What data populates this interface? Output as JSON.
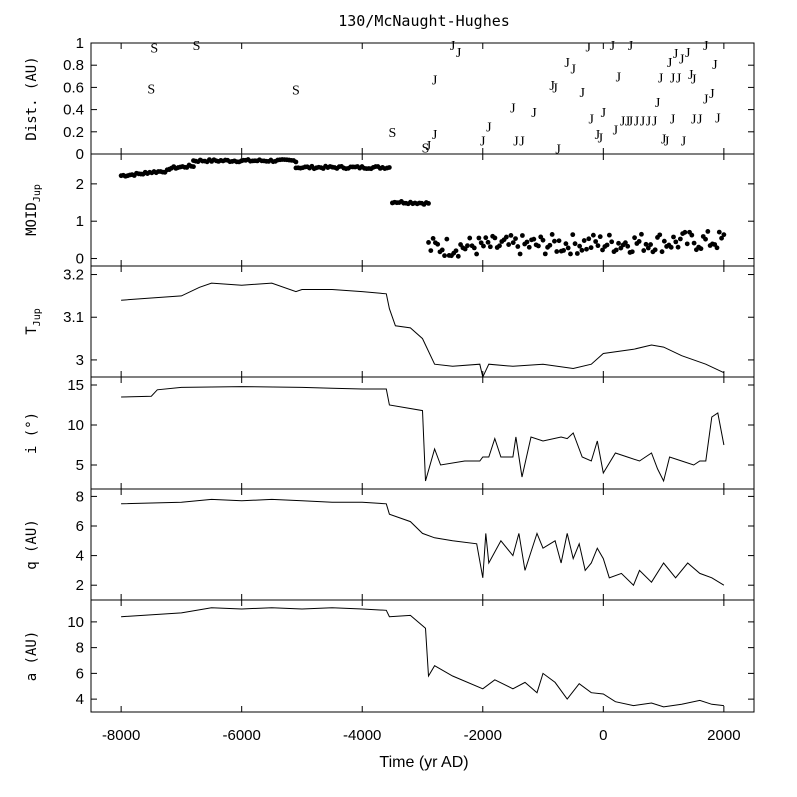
{
  "chart_data": {
    "type": "line",
    "title": "130/McNaught-Hughes",
    "xlabel": "Time (yr AD)",
    "xlim": [
      -8500,
      2500
    ],
    "x_ticks": [
      "-8000",
      "-6000",
      "-4000",
      "-2000",
      "0",
      "2000"
    ],
    "x_tick_values": [
      -8000,
      -6000,
      -4000,
      -2000,
      0,
      2000
    ],
    "panels": [
      {
        "key": "dist",
        "ylabel": "Dist. (AU)",
        "type": "scatter-markers",
        "ylim": [
          0,
          1
        ],
        "yticks": [
          "0",
          "0.2",
          "0.4",
          "0.6",
          "0.8",
          "1"
        ],
        "ytick_values": [
          0,
          0.2,
          0.4,
          0.6,
          0.8,
          1
        ],
        "marker_legend": {
          "S": "S",
          "J": "J"
        },
        "markers": [
          {
            "t": -7450,
            "d": 0.96,
            "m": "S"
          },
          {
            "t": -6750,
            "d": 0.98,
            "m": "S"
          },
          {
            "t": -7500,
            "d": 0.59,
            "m": "S"
          },
          {
            "t": -5100,
            "d": 0.58,
            "m": "S"
          },
          {
            "t": -3500,
            "d": 0.2,
            "m": "S"
          },
          {
            "t": -2950,
            "d": 0.06,
            "m": "S"
          },
          {
            "t": -2500,
            "d": 0.98,
            "m": "J"
          },
          {
            "t": -2400,
            "d": 0.92,
            "m": "J"
          },
          {
            "t": -2800,
            "d": 0.67,
            "m": "J"
          },
          {
            "t": -2800,
            "d": 0.18,
            "m": "J"
          },
          {
            "t": -2900,
            "d": 0.08,
            "m": "J"
          },
          {
            "t": -1900,
            "d": 0.25,
            "m": "J"
          },
          {
            "t": -2000,
            "d": 0.12,
            "m": "J"
          },
          {
            "t": -1500,
            "d": 0.42,
            "m": "J"
          },
          {
            "t": -1450,
            "d": 0.12,
            "m": "J"
          },
          {
            "t": -1350,
            "d": 0.12,
            "m": "J"
          },
          {
            "t": -1150,
            "d": 0.38,
            "m": "J"
          },
          {
            "t": -850,
            "d": 0.62,
            "m": "J"
          },
          {
            "t": -800,
            "d": 0.6,
            "m": "J"
          },
          {
            "t": -750,
            "d": 0.05,
            "m": "J"
          },
          {
            "t": -600,
            "d": 0.83,
            "m": "J"
          },
          {
            "t": -500,
            "d": 0.77,
            "m": "J"
          },
          {
            "t": -350,
            "d": 0.56,
            "m": "J"
          },
          {
            "t": -250,
            "d": 0.97,
            "m": "J"
          },
          {
            "t": -200,
            "d": 0.32,
            "m": "J"
          },
          {
            "t": -100,
            "d": 0.18,
            "m": "J"
          },
          {
            "t": 0,
            "d": 0.38,
            "m": "J"
          },
          {
            "t": -50,
            "d": 0.15,
            "m": "J"
          },
          {
            "t": 150,
            "d": 0.98,
            "m": "J"
          },
          {
            "t": 200,
            "d": 0.22,
            "m": "J"
          },
          {
            "t": 250,
            "d": 0.7,
            "m": "J"
          },
          {
            "t": 320,
            "d": 0.3,
            "m": "J"
          },
          {
            "t": 400,
            "d": 0.3,
            "m": "J"
          },
          {
            "t": 450,
            "d": 0.3,
            "m": "J"
          },
          {
            "t": 450,
            "d": 0.98,
            "m": "J"
          },
          {
            "t": 550,
            "d": 0.3,
            "m": "J"
          },
          {
            "t": 650,
            "d": 0.3,
            "m": "J"
          },
          {
            "t": 750,
            "d": 0.3,
            "m": "J"
          },
          {
            "t": 850,
            "d": 0.3,
            "m": "J"
          },
          {
            "t": 900,
            "d": 0.47,
            "m": "J"
          },
          {
            "t": 950,
            "d": 0.69,
            "m": "J"
          },
          {
            "t": 1000,
            "d": 0.14,
            "m": "J"
          },
          {
            "t": 1050,
            "d": 0.12,
            "m": "J"
          },
          {
            "t": 1100,
            "d": 0.83,
            "m": "J"
          },
          {
            "t": 1150,
            "d": 0.69,
            "m": "J"
          },
          {
            "t": 1200,
            "d": 0.91,
            "m": "J"
          },
          {
            "t": 1250,
            "d": 0.69,
            "m": "J"
          },
          {
            "t": 1300,
            "d": 0.86,
            "m": "J"
          },
          {
            "t": 1330,
            "d": 0.12,
            "m": "J"
          },
          {
            "t": 1400,
            "d": 0.92,
            "m": "J"
          },
          {
            "t": 1450,
            "d": 0.72,
            "m": "J"
          },
          {
            "t": 1500,
            "d": 0.68,
            "m": "J"
          },
          {
            "t": 1600,
            "d": 0.32,
            "m": "J"
          },
          {
            "t": 1700,
            "d": 0.98,
            "m": "J"
          },
          {
            "t": 1700,
            "d": 0.5,
            "m": "J"
          },
          {
            "t": 1800,
            "d": 0.55,
            "m": "J"
          },
          {
            "t": 1850,
            "d": 0.81,
            "m": "J"
          },
          {
            "t": 1900,
            "d": 0.33,
            "m": "J"
          },
          {
            "t": 1500,
            "d": 0.32,
            "m": "J"
          },
          {
            "t": 1150,
            "d": 0.32,
            "m": "J"
          }
        ]
      },
      {
        "key": "moid",
        "ylabel": "MOID",
        "ylabel_sub": "Jup",
        "type": "scatter",
        "ylim": [
          -0.2,
          2.8
        ],
        "yticks": [
          "0",
          "1",
          "2"
        ],
        "ytick_values": [
          0,
          1,
          2
        ],
        "segments": [
          {
            "t0": -8000,
            "t1": -7600,
            "v0": 2.22,
            "v1": 2.28
          },
          {
            "t0": -7600,
            "t1": -7200,
            "v0": 2.3,
            "v1": 2.35
          },
          {
            "t0": -7200,
            "t1": -6800,
            "v0": 2.42,
            "v1": 2.48
          },
          {
            "t0": -6800,
            "t1": -5100,
            "v0": 2.62,
            "v1": 2.62
          },
          {
            "t0": -5100,
            "t1": -3550,
            "v0": 2.44,
            "v1": 2.44
          },
          {
            "t0": -3500,
            "t1": -2900,
            "v0": 1.52,
            "v1": 1.48
          },
          {
            "t0": -2900,
            "t1": 2000,
            "v0": 0.3,
            "v1": 0.48
          }
        ]
      },
      {
        "key": "tjup",
        "ylabel": "T",
        "ylabel_sub": "Jup",
        "type": "line",
        "ylim": [
          2.96,
          3.22
        ],
        "yticks": [
          "3",
          "3.1",
          "3.2"
        ],
        "ytick_values": [
          3.0,
          3.1,
          3.2
        ],
        "x": [
          -8000,
          -7500,
          -7000,
          -6700,
          -6500,
          -6000,
          -5500,
          -5100,
          -5000,
          -4500,
          -4000,
          -3600,
          -3550,
          -3450,
          -3200,
          -3000,
          -2800,
          -2500,
          -2050,
          -2000,
          -1950,
          -1900,
          -1500,
          -1000,
          -500,
          -200,
          0,
          500,
          800,
          1000,
          1300,
          1700,
          2000
        ],
        "values": [
          3.14,
          3.145,
          3.15,
          3.17,
          3.18,
          3.175,
          3.18,
          3.16,
          3.165,
          3.165,
          3.16,
          3.155,
          3.12,
          3.08,
          3.075,
          3.05,
          2.99,
          2.985,
          2.99,
          2.96,
          2.975,
          2.99,
          2.985,
          2.99,
          2.98,
          2.99,
          3.015,
          3.025,
          3.035,
          3.03,
          3.01,
          2.99,
          2.97
        ]
      },
      {
        "key": "i",
        "ylabel": "i (°)",
        "type": "line",
        "ylim": [
          2.0,
          16.0
        ],
        "yticks": [
          "5",
          "10",
          "15"
        ],
        "ytick_values": [
          5,
          10,
          15
        ],
        "x": [
          -8000,
          -7500,
          -7400,
          -7000,
          -6000,
          -5000,
          -4500,
          -4000,
          -3600,
          -3550,
          -3000,
          -2950,
          -2800,
          -2700,
          -2300,
          -2050,
          -2000,
          -1900,
          -1800,
          -1700,
          -1500,
          -1450,
          -1350,
          -1200,
          -1000,
          -700,
          -600,
          -500,
          -350,
          -200,
          -100,
          0,
          200,
          400,
          600,
          800,
          900,
          1000,
          1100,
          1300,
          1500,
          1600,
          1700,
          1800,
          1900,
          2000
        ],
        "values": [
          13.5,
          13.6,
          14.4,
          14.7,
          14.8,
          14.7,
          14.6,
          14.5,
          14.5,
          12.5,
          11.8,
          3.0,
          7.0,
          5.0,
          5.5,
          5.5,
          6.0,
          6.0,
          8.3,
          6.0,
          6.0,
          8.5,
          3.5,
          8.5,
          8.0,
          8.5,
          8.3,
          9.0,
          6.0,
          5.5,
          8.0,
          4.0,
          6.5,
          6.0,
          5.5,
          6.5,
          4.5,
          3.0,
          6.0,
          5.5,
          5.0,
          5.5,
          5.5,
          11.0,
          11.5,
          7.5
        ]
      },
      {
        "key": "q",
        "ylabel": "q (AU)",
        "type": "line",
        "ylim": [
          1.0,
          8.5
        ],
        "yticks": [
          "2",
          "4",
          "6",
          "8"
        ],
        "ytick_values": [
          2,
          4,
          6,
          8
        ],
        "x": [
          -8000,
          -7000,
          -6500,
          -6000,
          -5500,
          -5000,
          -4500,
          -4000,
          -3600,
          -3550,
          -3200,
          -3000,
          -2800,
          -2500,
          -2100,
          -2000,
          -1950,
          -1900,
          -1700,
          -1500,
          -1400,
          -1300,
          -1100,
          -1000,
          -800,
          -700,
          -600,
          -500,
          -400,
          -300,
          -200,
          -100,
          0,
          100,
          300,
          500,
          600,
          800,
          1000,
          1200,
          1400,
          1600,
          1800,
          2000
        ],
        "values": [
          7.5,
          7.6,
          7.8,
          7.7,
          7.8,
          7.7,
          7.6,
          7.6,
          7.5,
          6.8,
          6.3,
          5.5,
          5.2,
          5.0,
          4.8,
          2.5,
          5.5,
          3.5,
          5.0,
          4.0,
          5.5,
          3.0,
          5.5,
          4.5,
          5.0,
          3.5,
          5.5,
          3.8,
          4.8,
          3.0,
          3.5,
          4.5,
          3.8,
          2.5,
          2.8,
          2.0,
          3.0,
          2.2,
          3.5,
          2.5,
          3.5,
          2.8,
          2.5,
          2.0
        ]
      },
      {
        "key": "a",
        "ylabel": "a (AU)",
        "type": "line",
        "ylim": [
          3.0,
          11.7
        ],
        "yticks": [
          "4",
          "6",
          "8",
          "10"
        ],
        "ytick_values": [
          4,
          6,
          8,
          10
        ],
        "x": [
          -8000,
          -7000,
          -6500,
          -6000,
          -5500,
          -5000,
          -4500,
          -4000,
          -3600,
          -3550,
          -3200,
          -2950,
          -2900,
          -2800,
          -2500,
          -2000,
          -1800,
          -1500,
          -1300,
          -1100,
          -1000,
          -800,
          -600,
          -400,
          -200,
          0,
          200,
          500,
          800,
          1000,
          1300,
          1600,
          1800,
          2000
        ],
        "values": [
          10.4,
          10.7,
          11.1,
          11.0,
          11.1,
          11.0,
          11.1,
          11.0,
          10.9,
          10.4,
          10.5,
          9.5,
          5.8,
          6.6,
          5.8,
          4.8,
          5.5,
          4.8,
          5.3,
          4.5,
          6.0,
          5.3,
          4.0,
          5.2,
          4.5,
          4.4,
          3.8,
          3.5,
          3.7,
          3.4,
          3.6,
          3.9,
          3.6,
          3.5
        ]
      }
    ]
  }
}
